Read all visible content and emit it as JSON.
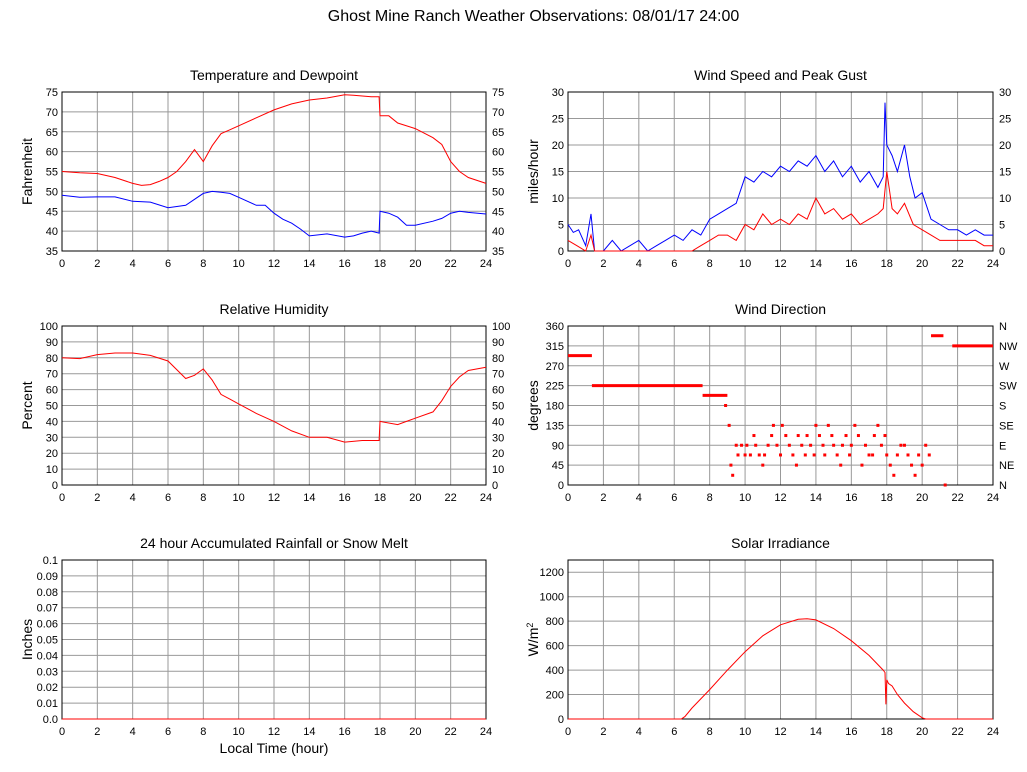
{
  "title": "Ghost Mine Ranch Weather Observations: 08/01/17 24:00",
  "colors": {
    "red": "#ff0000",
    "blue": "#0000ff"
  },
  "chart_data": [
    {
      "id": "temp",
      "type": "line",
      "title": "Temperature and Dewpoint",
      "xlabel": "",
      "ylabel": "Fahrenheit",
      "xlim": [
        0,
        24
      ],
      "ylim": [
        35,
        75
      ],
      "xticks": [
        0,
        2,
        4,
        6,
        8,
        10,
        12,
        14,
        16,
        18,
        20,
        22,
        24
      ],
      "yticks": [
        35,
        40,
        45,
        50,
        55,
        60,
        65,
        70,
        75
      ],
      "right_axis": true,
      "grid": true,
      "series": [
        {
          "color": "#ff0000",
          "x": [
            0,
            1,
            2,
            3,
            4,
            4.5,
            5,
            5.5,
            6,
            6.5,
            7,
            7.5,
            8,
            8.5,
            9,
            9.5,
            10,
            11,
            12,
            13,
            14,
            15,
            16,
            16.5,
            17,
            17.5,
            17.95,
            18,
            18.5,
            19,
            20,
            21,
            21.5,
            22,
            22.5,
            23,
            24
          ],
          "y": [
            55,
            54.7,
            54.5,
            53.5,
            52,
            51.5,
            51.7,
            52.5,
            53.5,
            55,
            57.5,
            60.5,
            57.5,
            61.5,
            64.5,
            65.5,
            66.5,
            68.5,
            70.5,
            72,
            73,
            73.5,
            74.3,
            74.2,
            74,
            73.8,
            73.8,
            69,
            69,
            67.2,
            65.8,
            63.5,
            61.8,
            57.5,
            55,
            53.5,
            52
          ]
        },
        {
          "color": "#0000ff",
          "x": [
            0,
            1,
            2,
            3,
            4,
            5,
            6,
            7,
            8,
            8.5,
            9,
            9.5,
            10,
            11,
            11.5,
            12,
            12.5,
            13,
            13.5,
            14,
            15,
            16,
            16.5,
            17,
            17.5,
            17.95,
            18,
            18.5,
            19,
            19.5,
            20,
            21,
            21.5,
            22,
            22.5,
            23,
            24
          ],
          "y": [
            49,
            48.5,
            48.6,
            48.6,
            47.5,
            47.3,
            45.9,
            46.5,
            49.5,
            50,
            49.8,
            49.5,
            48.5,
            46.5,
            46.5,
            44.5,
            43,
            42,
            40.5,
            38.8,
            39.3,
            38.5,
            38.8,
            39.5,
            40,
            39.5,
            45,
            44.5,
            43.5,
            41.5,
            41.5,
            42.5,
            43.2,
            44.5,
            45,
            44.7,
            44.3
          ]
        }
      ]
    },
    {
      "id": "wind",
      "type": "line",
      "title": "Wind Speed and Peak Gust",
      "xlabel": "",
      "ylabel": "miles/hour",
      "xlim": [
        0,
        24
      ],
      "ylim": [
        0,
        30
      ],
      "xticks": [
        0,
        2,
        4,
        6,
        8,
        10,
        12,
        14,
        16,
        18,
        20,
        22,
        24
      ],
      "yticks": [
        0,
        5,
        10,
        15,
        20,
        25,
        30
      ],
      "right_axis": true,
      "grid": true,
      "series": [
        {
          "color": "#0000ff",
          "x": [
            0,
            0.3,
            0.6,
            1,
            1.3,
            1.5,
            2,
            2.5,
            3,
            3.5,
            4,
            4.5,
            5,
            5.5,
            6,
            6.5,
            7,
            7.5,
            8,
            8.5,
            9,
            9.5,
            10,
            10.5,
            11,
            11.5,
            12,
            12.5,
            13,
            13.5,
            14,
            14.5,
            15,
            15.5,
            16,
            16.5,
            17,
            17.5,
            17.8,
            17.9,
            18,
            18.3,
            18.6,
            19,
            19.3,
            19.6,
            20,
            20.5,
            21,
            21.5,
            22,
            22.5,
            23,
            23.5,
            24
          ],
          "y": [
            5,
            3.5,
            4,
            1,
            7,
            0,
            0,
            2,
            0,
            1,
            2,
            0,
            1,
            2,
            3,
            2,
            4,
            3,
            6,
            7,
            8,
            9,
            14,
            13,
            15,
            14,
            16,
            15,
            17,
            16,
            18,
            15,
            17,
            14,
            16,
            13,
            15,
            12,
            14,
            28,
            20,
            18,
            15,
            20,
            14,
            10,
            11,
            6,
            5,
            4,
            4,
            3,
            4,
            3,
            3
          ]
        },
        {
          "color": "#ff0000",
          "x": [
            0,
            0.5,
            1,
            1.3,
            1.5,
            2,
            3,
            4,
            5,
            6,
            7,
            7.5,
            8,
            8.5,
            9,
            9.5,
            10,
            10.5,
            11,
            11.5,
            12,
            12.5,
            13,
            13.5,
            14,
            14.5,
            15,
            15.5,
            16,
            16.5,
            17,
            17.5,
            17.8,
            18,
            18.3,
            18.6,
            19,
            19.5,
            20,
            20.5,
            21,
            21.5,
            22,
            22.5,
            23,
            23.5,
            24
          ],
          "y": [
            2,
            1,
            0,
            3,
            0,
            0,
            0,
            0,
            0,
            0,
            0,
            1,
            2,
            3,
            3,
            2,
            5,
            4,
            7,
            5,
            6,
            5,
            7,
            6,
            10,
            7,
            8,
            6,
            7,
            5,
            6,
            7,
            8,
            15,
            8,
            7,
            9,
            5,
            4,
            3,
            2,
            2,
            2,
            2,
            2,
            1,
            1
          ]
        }
      ]
    },
    {
      "id": "rh",
      "type": "line",
      "title": "Relative Humidity",
      "xlabel": "",
      "ylabel": "Percent",
      "xlim": [
        0,
        24
      ],
      "ylim": [
        0,
        100
      ],
      "xticks": [
        0,
        2,
        4,
        6,
        8,
        10,
        12,
        14,
        16,
        18,
        20,
        22,
        24
      ],
      "yticks": [
        0,
        10,
        20,
        30,
        40,
        50,
        60,
        70,
        80,
        90,
        100
      ],
      "right_axis": true,
      "grid": true,
      "series": [
        {
          "color": "#ff0000",
          "x": [
            0,
            1,
            2,
            3,
            4,
            5,
            6,
            7,
            7.5,
            8,
            8.5,
            9,
            9.5,
            10,
            11,
            12,
            13,
            14,
            15,
            16,
            17,
            17.95,
            18,
            19,
            19.5,
            20,
            21,
            21.5,
            22,
            22.5,
            23,
            24
          ],
          "y": [
            80,
            79.5,
            82,
            83,
            83,
            81.5,
            78,
            67,
            69,
            73,
            66,
            57,
            54,
            51,
            45,
            40,
            34,
            30,
            30,
            27,
            28,
            28,
            40,
            38,
            40,
            42,
            46,
            53,
            62,
            68,
            72,
            74
          ]
        }
      ]
    },
    {
      "id": "wdir",
      "type": "scatter",
      "title": "Wind Direction",
      "xlabel": "",
      "ylabel": "degrees",
      "xlim": [
        0,
        24
      ],
      "ylim": [
        0,
        360
      ],
      "xticks": [
        0,
        2,
        4,
        6,
        8,
        10,
        12,
        14,
        16,
        18,
        20,
        22,
        24
      ],
      "yticks": [
        0,
        45,
        90,
        135,
        180,
        225,
        270,
        315,
        360
      ],
      "right_labels": [
        "N",
        "NE",
        "E",
        "SE",
        "S",
        "SW",
        "W",
        "NW",
        "N"
      ],
      "grid": true,
      "series": [
        {
          "color": "#ff0000",
          "segments": [
            [
              0.0,
              1.35,
              293
            ],
            [
              1.35,
              7.6,
              225
            ],
            [
              7.6,
              9.0,
              203
            ],
            [
              20.5,
              21.2,
              338
            ],
            [
              21.7,
              24.0,
              315
            ]
          ],
          "x": [
            8.9,
            9.1,
            9.2,
            9.3,
            9.5,
            9.6,
            9.8,
            10.0,
            10.1,
            10.3,
            10.5,
            10.6,
            10.8,
            11.0,
            11.1,
            11.3,
            11.5,
            11.6,
            11.8,
            12.0,
            12.1,
            12.3,
            12.5,
            12.7,
            12.9,
            13.0,
            13.2,
            13.4,
            13.5,
            13.7,
            13.9,
            14.0,
            14.2,
            14.4,
            14.5,
            14.7,
            14.9,
            15.0,
            15.2,
            15.4,
            15.5,
            15.7,
            15.9,
            16.0,
            16.2,
            16.4,
            16.6,
            16.8,
            17.0,
            17.2,
            17.3,
            17.5,
            17.7,
            17.9,
            18.0,
            18.2,
            18.4,
            18.6,
            18.8,
            19.0,
            19.2,
            19.4,
            19.6,
            19.8,
            20.0,
            20.2,
            20.4,
            21.3
          ],
          "y": [
            180,
            135,
            45,
            22,
            90,
            68,
            90,
            68,
            90,
            68,
            112,
            90,
            68,
            45,
            68,
            90,
            112,
            135,
            90,
            68,
            135,
            112,
            90,
            68,
            45,
            112,
            90,
            68,
            112,
            90,
            68,
            135,
            112,
            90,
            68,
            135,
            112,
            90,
            68,
            45,
            90,
            112,
            68,
            90,
            135,
            112,
            45,
            90,
            68,
            68,
            112,
            135,
            90,
            112,
            68,
            45,
            22,
            68,
            90,
            90,
            68,
            45,
            22,
            68,
            45,
            90,
            68,
            0
          ]
        }
      ]
    },
    {
      "id": "rain",
      "type": "line",
      "title": "24 hour Accumulated Rainfall or Snow Melt",
      "xlabel": "Local Time (hour)",
      "ylabel": "Inches",
      "xlim": [
        0,
        24
      ],
      "ylim": [
        0,
        0.1
      ],
      "xticks": [
        0,
        2,
        4,
        6,
        8,
        10,
        12,
        14,
        16,
        18,
        20,
        22,
        24
      ],
      "yticks": [
        0.0,
        0.01,
        0.02,
        0.03,
        0.04,
        0.05,
        0.06,
        0.07,
        0.08,
        0.09,
        0.1
      ],
      "ytick_labels": [
        "0.0",
        "0.01",
        "0.02",
        "0.03",
        "0.04",
        "0.05",
        "0.06",
        "0.07",
        "0.08",
        "0.09",
        "0.1"
      ],
      "right_axis": false,
      "grid": true,
      "series": [
        {
          "color": "#ff0000",
          "x": [
            0,
            24
          ],
          "y": [
            0,
            0
          ]
        }
      ]
    },
    {
      "id": "solar",
      "type": "line",
      "title": "Solar Irradiance",
      "xlabel": "",
      "ylabel": "W/m",
      "ylabel_sup": "2",
      "xlim": [
        0,
        24
      ],
      "ylim": [
        0,
        1300
      ],
      "xticks": [
        0,
        2,
        4,
        6,
        8,
        10,
        12,
        14,
        16,
        18,
        20,
        22,
        24
      ],
      "yticks": [
        0,
        200,
        400,
        600,
        800,
        1000,
        1200
      ],
      "right_axis": false,
      "grid": true,
      "series": [
        {
          "color": "#ff0000",
          "x": [
            0,
            6.4,
            6.6,
            7,
            8,
            9,
            10,
            11,
            12,
            13,
            13.5,
            14,
            15,
            16,
            17,
            17.8,
            17.9,
            17.95,
            18,
            18.1,
            18.3,
            18.6,
            19,
            19.5,
            20,
            20.2,
            21,
            24
          ],
          "y": [
            0,
            0,
            20,
            90,
            240,
            400,
            550,
            680,
            770,
            815,
            820,
            810,
            740,
            640,
            520,
            400,
            380,
            120,
            320,
            290,
            270,
            200,
            130,
            60,
            10,
            0,
            0,
            0
          ]
        }
      ]
    }
  ]
}
